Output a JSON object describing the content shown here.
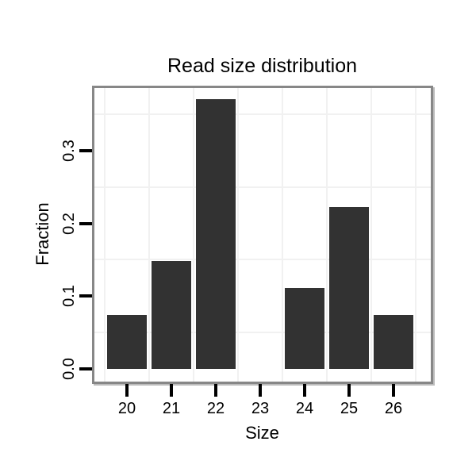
{
  "chart_data": {
    "type": "bar",
    "title": "Read size distribution",
    "xlabel": "Size",
    "ylabel": "Fraction",
    "categories": [
      "20",
      "21",
      "22",
      "23",
      "24",
      "25",
      "26"
    ],
    "values": [
      0.0741,
      0.1481,
      0.3704,
      0,
      0.1111,
      0.2222,
      0.0741
    ],
    "y_ticks": [
      {
        "label": "0.0",
        "value": 0.0
      },
      {
        "label": "0.1",
        "value": 0.1
      },
      {
        "label": "0.2",
        "value": 0.2
      },
      {
        "label": "0.3",
        "value": 0.3
      }
    ],
    "minor_gridlines_y": [
      0.05,
      0.15,
      0.25,
      0.35
    ],
    "ylim": [
      0,
      0.386
    ],
    "grid": "minor gridlines only, light gray, between ticks and between categories",
    "legend": "none",
    "colors": {
      "bar": "#323232",
      "panel_border": "#878787",
      "panel_shadow": "#bcbcbc",
      "gridline": "#f1f1f1",
      "tick": "#000000",
      "text": "#000000",
      "background": "#ffffff"
    }
  }
}
